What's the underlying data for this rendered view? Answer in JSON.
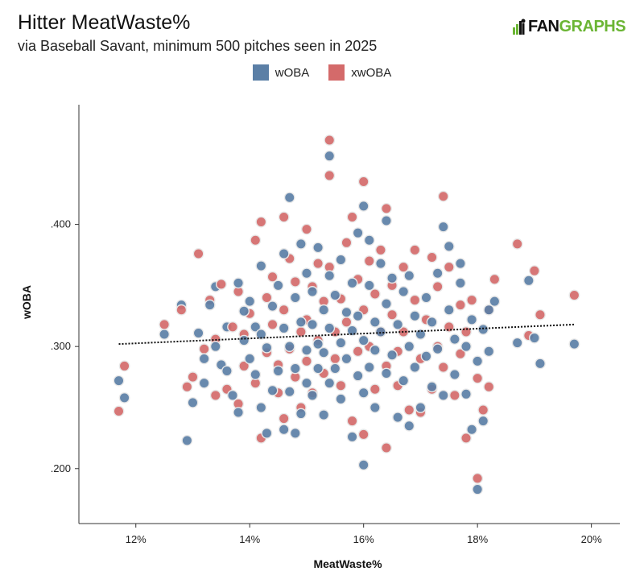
{
  "title": "Hitter MeatWaste%",
  "subtitle": "via Baseball Savant, minimum 500 pitches seen in 2025",
  "logo": {
    "prefix": "FAN",
    "suffix": "GRAPHS",
    "brand_color": "#6bb534"
  },
  "legend": [
    {
      "label": "wOBA",
      "color": "#5b7fa6"
    },
    {
      "label": "xwOBA",
      "color": "#d46a6a"
    }
  ],
  "chart_data": {
    "type": "scatter",
    "title": "Hitter MeatWaste%",
    "xlabel": "MeatWaste%",
    "ylabel": "wOBA",
    "xlim": [
      11.0,
      20.5
    ],
    "ylim": [
      0.155,
      0.498
    ],
    "xticks": [
      {
        "value": 12,
        "label": "12%"
      },
      {
        "value": 14,
        "label": "14%"
      },
      {
        "value": 16,
        "label": "16%"
      },
      {
        "value": 18,
        "label": "18%"
      },
      {
        "value": 20,
        "label": "20%"
      }
    ],
    "yticks": [
      {
        "value": 0.2,
        "label": ".200"
      },
      {
        "value": 0.3,
        "label": ".300"
      },
      {
        "value": 0.4,
        "label": ".400"
      }
    ],
    "trendline": {
      "x": [
        11.7,
        19.7
      ],
      "y": [
        0.302,
        0.318
      ],
      "style": "dotted",
      "color": "#111111"
    },
    "series": [
      {
        "name": "wOBA",
        "color": "#5b7fa6",
        "points": [
          [
            11.7,
            0.272
          ],
          [
            11.8,
            0.258
          ],
          [
            12.5,
            0.31
          ],
          [
            12.8,
            0.334
          ],
          [
            12.9,
            0.223
          ],
          [
            13.0,
            0.254
          ],
          [
            13.1,
            0.311
          ],
          [
            13.2,
            0.27
          ],
          [
            13.2,
            0.29
          ],
          [
            13.3,
            0.334
          ],
          [
            13.4,
            0.349
          ],
          [
            13.4,
            0.3
          ],
          [
            13.5,
            0.285
          ],
          [
            13.6,
            0.316
          ],
          [
            13.6,
            0.28
          ],
          [
            13.7,
            0.26
          ],
          [
            13.8,
            0.352
          ],
          [
            13.8,
            0.246
          ],
          [
            13.9,
            0.305
          ],
          [
            13.9,
            0.329
          ],
          [
            14.0,
            0.337
          ],
          [
            14.0,
            0.29
          ],
          [
            14.1,
            0.277
          ],
          [
            14.1,
            0.316
          ],
          [
            14.2,
            0.366
          ],
          [
            14.2,
            0.25
          ],
          [
            14.2,
            0.31
          ],
          [
            14.3,
            0.229
          ],
          [
            14.3,
            0.299
          ],
          [
            14.4,
            0.333
          ],
          [
            14.4,
            0.264
          ],
          [
            14.5,
            0.28
          ],
          [
            14.5,
            0.35
          ],
          [
            14.6,
            0.315
          ],
          [
            14.6,
            0.232
          ],
          [
            14.6,
            0.376
          ],
          [
            14.7,
            0.422
          ],
          [
            14.7,
            0.263
          ],
          [
            14.7,
            0.3
          ],
          [
            14.8,
            0.229
          ],
          [
            14.8,
            0.34
          ],
          [
            14.8,
            0.282
          ],
          [
            14.9,
            0.384
          ],
          [
            14.9,
            0.245
          ],
          [
            14.9,
            0.32
          ],
          [
            15.0,
            0.297
          ],
          [
            15.0,
            0.36
          ],
          [
            15.0,
            0.27
          ],
          [
            15.1,
            0.318
          ],
          [
            15.1,
            0.345
          ],
          [
            15.1,
            0.26
          ],
          [
            15.2,
            0.302
          ],
          [
            15.2,
            0.381
          ],
          [
            15.2,
            0.282
          ],
          [
            15.3,
            0.244
          ],
          [
            15.3,
            0.33
          ],
          [
            15.3,
            0.295
          ],
          [
            15.4,
            0.456
          ],
          [
            15.4,
            0.358
          ],
          [
            15.4,
            0.27
          ],
          [
            15.4,
            0.315
          ],
          [
            15.5,
            0.282
          ],
          [
            15.5,
            0.342
          ],
          [
            15.6,
            0.371
          ],
          [
            15.6,
            0.303
          ],
          [
            15.6,
            0.257
          ],
          [
            15.7,
            0.328
          ],
          [
            15.7,
            0.29
          ],
          [
            15.8,
            0.313
          ],
          [
            15.8,
            0.352
          ],
          [
            15.8,
            0.226
          ],
          [
            15.9,
            0.393
          ],
          [
            15.9,
            0.276
          ],
          [
            15.9,
            0.325
          ],
          [
            16.0,
            0.415
          ],
          [
            16.0,
            0.203
          ],
          [
            16.0,
            0.262
          ],
          [
            16.0,
            0.305
          ],
          [
            16.1,
            0.35
          ],
          [
            16.1,
            0.283
          ],
          [
            16.1,
            0.387
          ],
          [
            16.2,
            0.32
          ],
          [
            16.2,
            0.25
          ],
          [
            16.2,
            0.297
          ],
          [
            16.3,
            0.368
          ],
          [
            16.3,
            0.312
          ],
          [
            16.4,
            0.403
          ],
          [
            16.4,
            0.278
          ],
          [
            16.4,
            0.335
          ],
          [
            16.5,
            0.293
          ],
          [
            16.5,
            0.356
          ],
          [
            16.6,
            0.242
          ],
          [
            16.6,
            0.318
          ],
          [
            16.7,
            0.272
          ],
          [
            16.7,
            0.345
          ],
          [
            16.8,
            0.235
          ],
          [
            16.8,
            0.3
          ],
          [
            16.8,
            0.358
          ],
          [
            16.9,
            0.283
          ],
          [
            16.9,
            0.325
          ],
          [
            17.0,
            0.25
          ],
          [
            17.0,
            0.31
          ],
          [
            17.1,
            0.34
          ],
          [
            17.1,
            0.292
          ],
          [
            17.2,
            0.267
          ],
          [
            17.2,
            0.32
          ],
          [
            17.3,
            0.36
          ],
          [
            17.3,
            0.298
          ],
          [
            17.4,
            0.398
          ],
          [
            17.4,
            0.26
          ],
          [
            17.5,
            0.33
          ],
          [
            17.5,
            0.382
          ],
          [
            17.6,
            0.306
          ],
          [
            17.6,
            0.277
          ],
          [
            17.7,
            0.352
          ],
          [
            17.7,
            0.368
          ],
          [
            17.8,
            0.261
          ],
          [
            17.8,
            0.3
          ],
          [
            17.9,
            0.322
          ],
          [
            17.9,
            0.232
          ],
          [
            18.0,
            0.183
          ],
          [
            18.0,
            0.288
          ],
          [
            18.1,
            0.239
          ],
          [
            18.1,
            0.314
          ],
          [
            18.2,
            0.296
          ],
          [
            18.2,
            0.33
          ],
          [
            18.3,
            0.337
          ],
          [
            18.7,
            0.303
          ],
          [
            18.9,
            0.354
          ],
          [
            19.0,
            0.307
          ],
          [
            19.1,
            0.286
          ],
          [
            19.7,
            0.302
          ]
        ]
      },
      {
        "name": "xwOBA",
        "color": "#d46a6a",
        "points": [
          [
            11.7,
            0.247
          ],
          [
            11.8,
            0.284
          ],
          [
            12.5,
            0.318
          ],
          [
            12.8,
            0.33
          ],
          [
            12.9,
            0.267
          ],
          [
            13.0,
            0.275
          ],
          [
            13.1,
            0.376
          ],
          [
            13.2,
            0.298
          ],
          [
            13.3,
            0.338
          ],
          [
            13.4,
            0.26
          ],
          [
            13.4,
            0.306
          ],
          [
            13.5,
            0.351
          ],
          [
            13.6,
            0.265
          ],
          [
            13.7,
            0.316
          ],
          [
            13.8,
            0.253
          ],
          [
            13.8,
            0.345
          ],
          [
            13.9,
            0.31
          ],
          [
            13.9,
            0.284
          ],
          [
            14.0,
            0.327
          ],
          [
            14.1,
            0.387
          ],
          [
            14.1,
            0.27
          ],
          [
            14.2,
            0.402
          ],
          [
            14.2,
            0.225
          ],
          [
            14.3,
            0.34
          ],
          [
            14.3,
            0.295
          ],
          [
            14.4,
            0.318
          ],
          [
            14.4,
            0.357
          ],
          [
            14.5,
            0.285
          ],
          [
            14.5,
            0.262
          ],
          [
            14.6,
            0.406
          ],
          [
            14.6,
            0.241
          ],
          [
            14.6,
            0.33
          ],
          [
            14.7,
            0.372
          ],
          [
            14.7,
            0.298
          ],
          [
            14.8,
            0.353
          ],
          [
            14.8,
            0.275
          ],
          [
            14.9,
            0.312
          ],
          [
            14.9,
            0.25
          ],
          [
            15.0,
            0.396
          ],
          [
            15.0,
            0.322
          ],
          [
            15.0,
            0.288
          ],
          [
            15.1,
            0.349
          ],
          [
            15.1,
            0.262
          ],
          [
            15.2,
            0.368
          ],
          [
            15.2,
            0.305
          ],
          [
            15.3,
            0.337
          ],
          [
            15.3,
            0.278
          ],
          [
            15.4,
            0.469
          ],
          [
            15.4,
            0.44
          ],
          [
            15.4,
            0.365
          ],
          [
            15.5,
            0.312
          ],
          [
            15.5,
            0.29
          ],
          [
            15.6,
            0.339
          ],
          [
            15.6,
            0.268
          ],
          [
            15.7,
            0.385
          ],
          [
            15.7,
            0.32
          ],
          [
            15.8,
            0.406
          ],
          [
            15.8,
            0.239
          ],
          [
            15.9,
            0.355
          ],
          [
            15.9,
            0.296
          ],
          [
            16.0,
            0.435
          ],
          [
            16.0,
            0.228
          ],
          [
            16.0,
            0.33
          ],
          [
            16.1,
            0.37
          ],
          [
            16.1,
            0.3
          ],
          [
            16.2,
            0.343
          ],
          [
            16.2,
            0.265
          ],
          [
            16.3,
            0.312
          ],
          [
            16.3,
            0.379
          ],
          [
            16.4,
            0.413
          ],
          [
            16.4,
            0.217
          ],
          [
            16.4,
            0.284
          ],
          [
            16.5,
            0.35
          ],
          [
            16.5,
            0.326
          ],
          [
            16.6,
            0.296
          ],
          [
            16.6,
            0.268
          ],
          [
            16.7,
            0.365
          ],
          [
            16.7,
            0.312
          ],
          [
            16.8,
            0.248
          ],
          [
            16.9,
            0.379
          ],
          [
            16.9,
            0.338
          ],
          [
            17.0,
            0.29
          ],
          [
            17.0,
            0.246
          ],
          [
            17.1,
            0.322
          ],
          [
            17.2,
            0.373
          ],
          [
            17.2,
            0.265
          ],
          [
            17.3,
            0.3
          ],
          [
            17.3,
            0.349
          ],
          [
            17.4,
            0.423
          ],
          [
            17.4,
            0.283
          ],
          [
            17.5,
            0.365
          ],
          [
            17.5,
            0.316
          ],
          [
            17.6,
            0.26
          ],
          [
            17.7,
            0.334
          ],
          [
            17.7,
            0.294
          ],
          [
            17.8,
            0.225
          ],
          [
            17.8,
            0.312
          ],
          [
            17.9,
            0.338
          ],
          [
            18.0,
            0.192
          ],
          [
            18.0,
            0.274
          ],
          [
            18.1,
            0.248
          ],
          [
            18.2,
            0.33
          ],
          [
            18.2,
            0.267
          ],
          [
            18.3,
            0.355
          ],
          [
            18.7,
            0.384
          ],
          [
            18.9,
            0.309
          ],
          [
            19.0,
            0.362
          ],
          [
            19.1,
            0.326
          ],
          [
            19.7,
            0.342
          ]
        ]
      }
    ]
  }
}
